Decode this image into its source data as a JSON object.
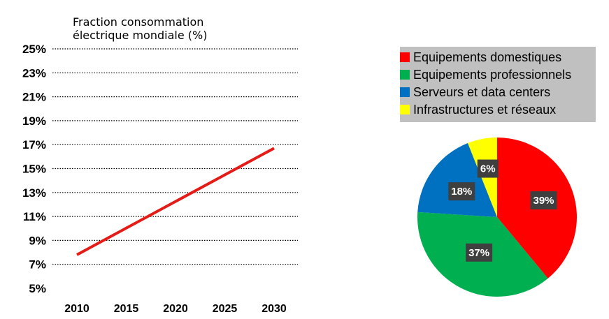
{
  "chart_data": [
    {
      "type": "line",
      "title": "Fraction consommation\nélectrique mondiale (%)",
      "x": [
        2010,
        2030
      ],
      "y": [
        7.8,
        16.7
      ],
      "xticks": [
        "2010",
        "2015",
        "2020",
        "2025",
        "2030"
      ],
      "yticks": [
        "5%",
        "7%",
        "9%",
        "11%",
        "13%",
        "15%",
        "17%",
        "19%",
        "21%",
        "23%",
        "25%"
      ],
      "ylim": [
        5,
        25
      ],
      "xlim": [
        2010,
        2030
      ],
      "grid": "dotted horizontal",
      "color": "#e41b17"
    },
    {
      "type": "pie",
      "labels": [
        "Equipements domestiques",
        "Equipements professionnels",
        "Serveurs et data centers",
        "Infrastructures et réseaux"
      ],
      "values": [
        39,
        37,
        18,
        6
      ],
      "value_labels": [
        "39%",
        "37%",
        "18%",
        "6%"
      ],
      "colors": [
        "#ff0000",
        "#00b050",
        "#0070c0",
        "#ffff00"
      ],
      "legend_position": "top",
      "legend_background": "#c0c0c0"
    }
  ]
}
